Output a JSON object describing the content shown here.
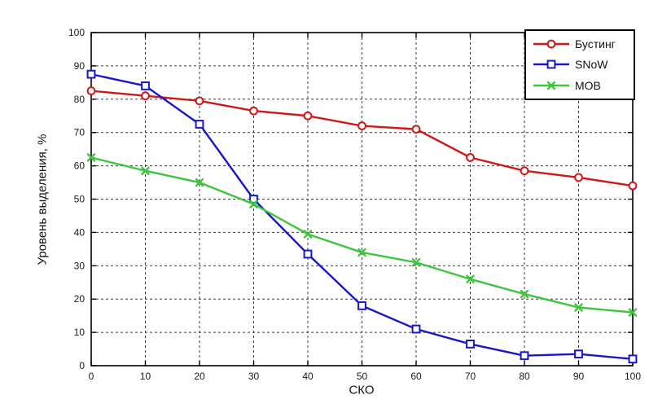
{
  "chart_data": {
    "type": "line",
    "title": "",
    "xlabel": "СКО",
    "ylabel": "Уровень выделения, %",
    "xlim": [
      0,
      100
    ],
    "ylim": [
      0,
      100
    ],
    "xticks": [
      0,
      10,
      20,
      30,
      40,
      50,
      60,
      70,
      80,
      90,
      100
    ],
    "yticks": [
      0,
      10,
      20,
      30,
      40,
      50,
      60,
      70,
      80,
      90,
      100
    ],
    "grid": true,
    "grid_style": "dashed",
    "legend_position": "top-right",
    "axis_color": "#000000",
    "grid_color": "#3a3a3a",
    "background_color": "#ffffff",
    "x": [
      0,
      10,
      20,
      30,
      40,
      50,
      60,
      70,
      80,
      90,
      100
    ],
    "series": [
      {
        "name": "Бустинг",
        "marker": "circle",
        "color": "#d01818",
        "values": [
          82.5,
          81,
          79.5,
          76.5,
          75,
          72,
          71,
          62.5,
          58.5,
          56.5,
          54
        ]
      },
      {
        "name": "SNoW",
        "marker": "square",
        "color": "#1818c8",
        "values": [
          87.5,
          84,
          72.5,
          50,
          33.5,
          18,
          11,
          6.5,
          3,
          3.5,
          2
        ]
      },
      {
        "name": "МОВ",
        "marker": "x",
        "color": "#3fc43f",
        "values": [
          62.5,
          58.5,
          55,
          48.5,
          39.5,
          34,
          31,
          26,
          21.5,
          17.5,
          16
        ]
      }
    ]
  }
}
